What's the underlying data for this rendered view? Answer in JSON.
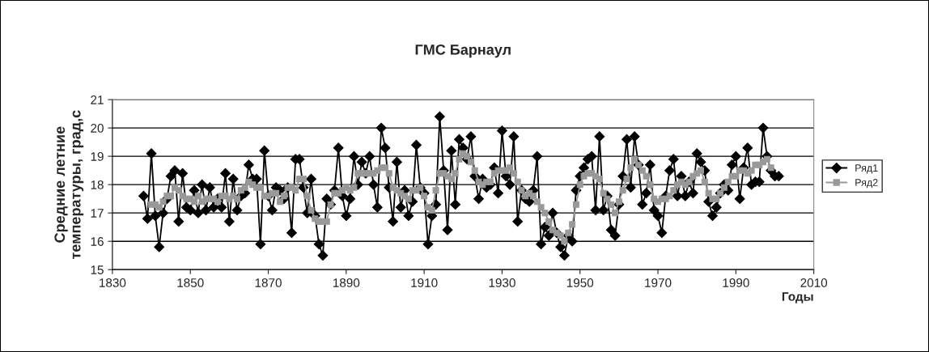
{
  "chart_data": {
    "type": "line",
    "title": "ГМС Барнаул",
    "xlabel": "Годы",
    "ylabel": "Средние летние\nтемпературы, град,с",
    "xlim": [
      1830,
      2010
    ],
    "xticks": [
      1830,
      1850,
      1870,
      1890,
      1910,
      1930,
      1950,
      1970,
      1990,
      2010
    ],
    "ylim": [
      15,
      21
    ],
    "yticks": [
      15,
      16,
      17,
      18,
      19,
      20,
      21
    ],
    "grid": "y",
    "legend": "right",
    "series": [
      {
        "name": "Ряд1",
        "color": "#000000",
        "marker": "diamond",
        "x": [
          1838,
          1839,
          1840,
          1841,
          1842,
          1843,
          1844,
          1845,
          1846,
          1847,
          1848,
          1849,
          1850,
          1851,
          1852,
          1853,
          1854,
          1855,
          1856,
          1857,
          1858,
          1859,
          1860,
          1861,
          1862,
          1863,
          1864,
          1865,
          1866,
          1867,
          1868,
          1869,
          1870,
          1871,
          1872,
          1873,
          1874,
          1875,
          1876,
          1877,
          1878,
          1879,
          1880,
          1881,
          1882,
          1883,
          1884,
          1885,
          1886,
          1887,
          1888,
          1889,
          1890,
          1891,
          1892,
          1893,
          1894,
          1895,
          1896,
          1897,
          1898,
          1899,
          1900,
          1901,
          1902,
          1903,
          1904,
          1905,
          1906,
          1907,
          1908,
          1909,
          1910,
          1911,
          1912,
          1913,
          1914,
          1915,
          1916,
          1917,
          1918,
          1919,
          1920,
          1921,
          1922,
          1923,
          1924,
          1925,
          1926,
          1927,
          1928,
          1929,
          1930,
          1931,
          1932,
          1933,
          1934,
          1935,
          1936,
          1937,
          1938,
          1939,
          1940,
          1941,
          1942,
          1943,
          1944,
          1945,
          1946,
          1947,
          1948,
          1949,
          1950,
          1951,
          1952,
          1953,
          1954,
          1955,
          1956,
          1957,
          1958,
          1959,
          1960,
          1961,
          1962,
          1963,
          1964,
          1965,
          1966,
          1967,
          1968,
          1969,
          1970,
          1971,
          1972,
          1973,
          1974,
          1975,
          1976,
          1977,
          1978,
          1979,
          1980,
          1981,
          1982,
          1983,
          1984,
          1985,
          1986,
          1987,
          1988,
          1989,
          1990,
          1991,
          1992,
          1993,
          1994,
          1995,
          1996,
          1997,
          1998,
          1999,
          2000,
          2001
        ],
        "values": [
          17.6,
          16.8,
          19.1,
          16.9,
          15.8,
          17.0,
          17.5,
          18.3,
          18.5,
          16.7,
          18.4,
          17.2,
          17.1,
          17.8,
          17.0,
          18.0,
          17.1,
          17.9,
          17.2,
          17.5,
          17.2,
          18.4,
          16.7,
          18.2,
          17.1,
          17.6,
          17.7,
          18.7,
          18.2,
          18.2,
          15.9,
          19.2,
          17.6,
          17.1,
          17.9,
          17.8,
          17.5,
          17.9,
          16.3,
          18.9,
          18.9,
          17.9,
          17.0,
          18.2,
          16.9,
          15.9,
          15.5,
          17.5,
          17.3,
          17.8,
          19.3,
          17.6,
          16.9,
          17.5,
          19.0,
          18.0,
          18.8,
          18.4,
          19.0,
          18.0,
          17.2,
          20.0,
          19.3,
          17.9,
          16.7,
          18.8,
          17.2,
          17.8,
          16.9,
          17.4,
          19.4,
          17.9,
          17.7,
          15.9,
          16.9,
          17.3,
          20.4,
          18.5,
          16.4,
          19.2,
          17.3,
          19.6,
          19.3,
          18.9,
          19.7,
          18.3,
          17.5,
          18.2,
          17.9,
          18.0,
          18.6,
          17.7,
          19.9,
          18.3,
          18.0,
          19.7,
          16.7,
          17.8,
          17.5,
          17.4,
          17.8,
          19.0,
          15.9,
          16.5,
          16.2,
          17.0,
          16.3,
          15.8,
          15.5,
          16.2,
          16.0,
          17.8,
          18.3,
          18.6,
          18.9,
          19.0,
          17.1,
          19.7,
          17.1,
          17.6,
          16.4,
          16.2,
          17.3,
          18.3,
          19.6,
          17.9,
          19.7,
          18.7,
          17.3,
          17.7,
          18.7,
          17.1,
          16.9,
          16.3,
          17.6,
          18.5,
          18.9,
          17.6,
          18.3,
          17.6,
          18.1,
          17.7,
          19.1,
          18.8,
          18.5,
          17.4,
          16.9,
          17.2,
          17.7,
          18.0,
          17.8,
          18.7,
          19.0,
          17.5,
          18.6,
          19.3,
          18.0,
          18.1,
          18.1,
          20.0,
          19.0,
          18.5,
          18.3,
          18.3
        ]
      },
      {
        "name": "Ряд2",
        "color": "#999999",
        "marker": "square",
        "x": [
          1840,
          1841,
          1842,
          1843,
          1844,
          1845,
          1846,
          1847,
          1848,
          1849,
          1850,
          1851,
          1852,
          1853,
          1854,
          1855,
          1856,
          1857,
          1858,
          1859,
          1860,
          1861,
          1862,
          1863,
          1864,
          1865,
          1866,
          1867,
          1868,
          1869,
          1870,
          1871,
          1872,
          1873,
          1874,
          1875,
          1876,
          1877,
          1878,
          1879,
          1880,
          1881,
          1882,
          1883,
          1884,
          1885,
          1886,
          1887,
          1888,
          1889,
          1890,
          1891,
          1892,
          1893,
          1894,
          1895,
          1896,
          1897,
          1898,
          1899,
          1900,
          1901,
          1902,
          1903,
          1904,
          1905,
          1906,
          1907,
          1908,
          1909,
          1910,
          1911,
          1912,
          1913,
          1914,
          1915,
          1916,
          1917,
          1918,
          1919,
          1920,
          1921,
          1922,
          1923,
          1924,
          1925,
          1926,
          1927,
          1928,
          1929,
          1930,
          1931,
          1932,
          1933,
          1934,
          1935,
          1936,
          1937,
          1938,
          1939,
          1940,
          1941,
          1942,
          1943,
          1944,
          1945,
          1946,
          1947,
          1948,
          1949,
          1950,
          1951,
          1952,
          1953,
          1954,
          1955,
          1956,
          1957,
          1958,
          1959,
          1960,
          1961,
          1962,
          1963,
          1964,
          1965,
          1966,
          1967,
          1968,
          1969,
          1970,
          1971,
          1972,
          1973,
          1974,
          1975,
          1976,
          1977,
          1978,
          1979,
          1980,
          1981,
          1982,
          1983,
          1984,
          1985,
          1986,
          1987,
          1988,
          1989,
          1990,
          1991,
          1992,
          1993,
          1994,
          1995,
          1996,
          1997,
          1998,
          1999
        ],
        "values": [
          17.3,
          17.3,
          17.2,
          17.4,
          17.6,
          17.6,
          17.9,
          17.8,
          17.6,
          17.5,
          17.5,
          17.4,
          17.6,
          17.4,
          17.5,
          17.5,
          17.5,
          17.4,
          17.6,
          17.6,
          17.5,
          17.6,
          17.5,
          17.8,
          17.9,
          18.1,
          18.0,
          17.9,
          17.9,
          17.6,
          17.6,
          17.7,
          17.7,
          17.4,
          17.6,
          17.9,
          17.9,
          17.8,
          18.2,
          18.2,
          17.6,
          17.1,
          16.8,
          16.7,
          16.7,
          16.7,
          17.3,
          17.7,
          17.7,
          17.8,
          17.9,
          17.8,
          17.9,
          18.4,
          18.4,
          18.4,
          18.4,
          18.4,
          18.5,
          18.6,
          18.6,
          18.4,
          17.9,
          17.8,
          17.7,
          17.6,
          17.5,
          17.8,
          17.8,
          17.9,
          17.6,
          17.2,
          17.1,
          17.8,
          18.4,
          18.4,
          18.3,
          18.2,
          18.4,
          18.9,
          19.1,
          19.0,
          18.8,
          18.5,
          18.1,
          18.0,
          18.1,
          18.1,
          18.4,
          18.5,
          18.5,
          18.5,
          18.6,
          18.4,
          18.1,
          17.8,
          17.6,
          17.7,
          17.6,
          17.4,
          17.2,
          17.0,
          16.7,
          16.4,
          16.3,
          16.2,
          16.0,
          16.3,
          16.6,
          17.3,
          18.0,
          18.3,
          18.4,
          18.4,
          18.3,
          18.2,
          17.7,
          17.5,
          17.3,
          17.0,
          17.4,
          17.8,
          18.2,
          18.6,
          18.9,
          18.7,
          18.5,
          18.3,
          18.0,
          17.5,
          17.4,
          17.5,
          17.5,
          17.6,
          17.8,
          18.0,
          18.1,
          18.0,
          18.1,
          18.3,
          18.4,
          18.5,
          18.1,
          17.7,
          17.5,
          17.5,
          17.7,
          17.9,
          18.1,
          18.3,
          18.3,
          18.5,
          18.5,
          18.4,
          18.5,
          18.7,
          18.7,
          18.8,
          18.9,
          18.6
        ]
      }
    ]
  }
}
